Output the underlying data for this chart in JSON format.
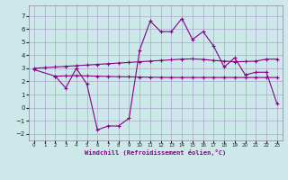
{
  "background_color": "#cce8e8",
  "grid_color": "#aaaacc",
  "line_color": "#880088",
  "xlabel": "Windchill (Refroidissement éolien,°C)",
  "xlim_min": -0.5,
  "xlim_max": 23.5,
  "ylim_min": -2.5,
  "ylim_max": 7.8,
  "yticks": [
    -2,
    -1,
    0,
    1,
    2,
    3,
    4,
    5,
    6,
    7
  ],
  "xticks": [
    0,
    1,
    2,
    3,
    4,
    5,
    6,
    7,
    8,
    9,
    10,
    11,
    12,
    13,
    14,
    15,
    16,
    17,
    18,
    19,
    20,
    21,
    22,
    23
  ],
  "line1_x": [
    0,
    1,
    2,
    3,
    4,
    5,
    6,
    7,
    8,
    9,
    10,
    11,
    12,
    13,
    14,
    15,
    16,
    17,
    18,
    19,
    20,
    21,
    22,
    23
  ],
  "line1_y": [
    3.0,
    3.05,
    3.1,
    3.15,
    3.2,
    3.25,
    3.3,
    3.35,
    3.4,
    3.45,
    3.5,
    3.55,
    3.6,
    3.65,
    3.7,
    3.72,
    3.68,
    3.6,
    3.55,
    3.5,
    3.52,
    3.55,
    3.7,
    3.7
  ],
  "line2_x": [
    2,
    3,
    4,
    5,
    6,
    7,
    8,
    9,
    10,
    11,
    12,
    13,
    14,
    15,
    16,
    17,
    18,
    19,
    20,
    21,
    22,
    23
  ],
  "line2_y": [
    2.4,
    2.42,
    2.44,
    2.42,
    2.4,
    2.38,
    2.36,
    2.35,
    2.33,
    2.32,
    2.31,
    2.3,
    2.3,
    2.3,
    2.3,
    2.3,
    2.3,
    2.3,
    2.3,
    2.3,
    2.3,
    2.3
  ],
  "line3_x": [
    0,
    2,
    3,
    4,
    5,
    6,
    7,
    8,
    9,
    10,
    11,
    12,
    13,
    14,
    15,
    16,
    17,
    18,
    19,
    20,
    21,
    22,
    23
  ],
  "line3_y": [
    2.9,
    2.4,
    1.5,
    3.0,
    1.8,
    -1.7,
    -1.4,
    -1.4,
    -0.8,
    4.4,
    6.6,
    5.8,
    5.8,
    6.8,
    5.2,
    5.8,
    4.7,
    3.1,
    3.8,
    2.5,
    2.7,
    2.7,
    0.3
  ]
}
